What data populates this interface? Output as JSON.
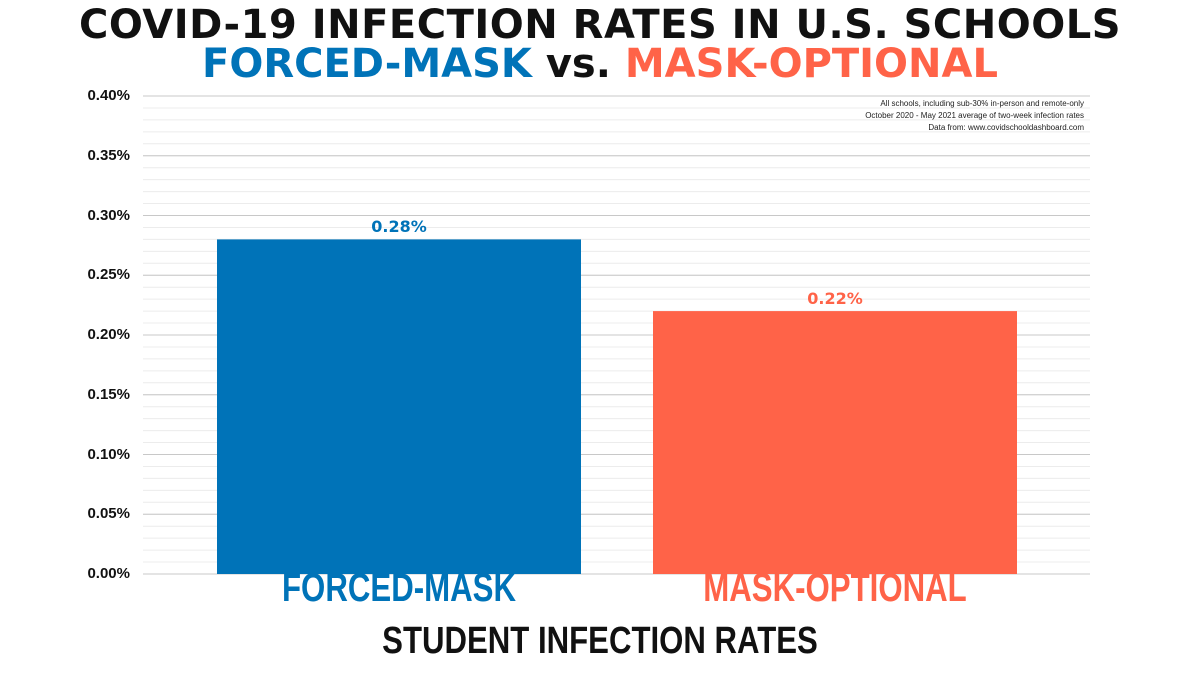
{
  "chart_data": {
    "type": "bar",
    "title": "COVID-19 INFECTION RATES IN U.S. SCHOOLS",
    "subtitle": {
      "part1": "FORCED-MASK",
      "part2": "vs.",
      "part3": "MASK-OPTIONAL"
    },
    "categories": [
      "FORCED-MASK",
      "MASK-OPTIONAL"
    ],
    "values": [
      0.28,
      0.22
    ],
    "value_labels": [
      "0.28%",
      "0.22%"
    ],
    "colors": [
      "#0073b8",
      "#ff6348"
    ],
    "xlabel": "STUDENT INFECTION RATES",
    "ylabel": "",
    "ylim": [
      0,
      0.4
    ],
    "yticks": [
      0,
      0.05,
      0.1,
      0.15,
      0.2,
      0.25,
      0.3,
      0.35,
      0.4
    ],
    "ytick_labels": [
      "0.00%",
      "0.05%",
      "0.10%",
      "0.15%",
      "0.20%",
      "0.25%",
      "0.30%",
      "0.35%",
      "0.40%"
    ],
    "grid": true,
    "notes": [
      "All schools, including sub-30% in-person and remote-only",
      "October 2020 - May 2021 average of two-week infection rates",
      "Data from: www.covidschooldashboard.com"
    ]
  }
}
